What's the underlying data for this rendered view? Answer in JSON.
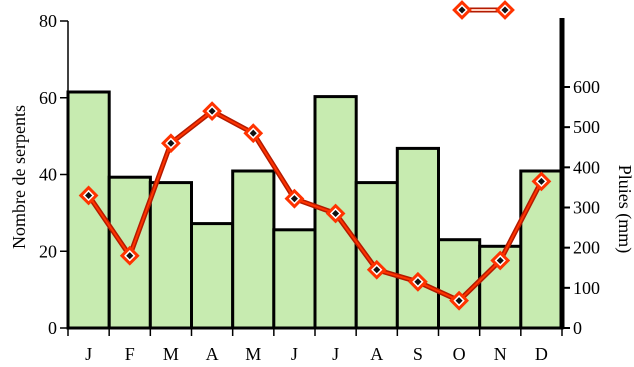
{
  "chart_data": {
    "type": "bar",
    "categories": [
      "J",
      "F",
      "M",
      "A",
      "M",
      "J",
      "J",
      "A",
      "S",
      "O",
      "N",
      "D"
    ],
    "series": [
      {
        "axis": "left",
        "type": "bar",
        "values": [
          61.5,
          39.3,
          37.9,
          27.2,
          40.9,
          25.6,
          60.3,
          37.9,
          46.8,
          23.0,
          21.3,
          40.9
        ],
        "color": "#c7ebb0"
      },
      {
        "axis": "right",
        "type": "line",
        "values": [
          330,
          180,
          460,
          540,
          485,
          322,
          285,
          145,
          115,
          68,
          168,
          365
        ],
        "color": "#ff3300",
        "marker_color": "#111111"
      }
    ],
    "y_left": {
      "label": "Nombre de serpents",
      "ticks": [
        0,
        20,
        40,
        60,
        80
      ],
      "range": [
        0,
        80
      ]
    },
    "y_right": {
      "label": "Pluies (mm)",
      "ticks": [
        0,
        100,
        200,
        300,
        400,
        500,
        600
      ],
      "range": [
        0,
        700
      ]
    },
    "legend": {
      "position": "top-right",
      "entries": [
        {
          "type": "line",
          "label": ""
        }
      ]
    },
    "grid": false
  }
}
